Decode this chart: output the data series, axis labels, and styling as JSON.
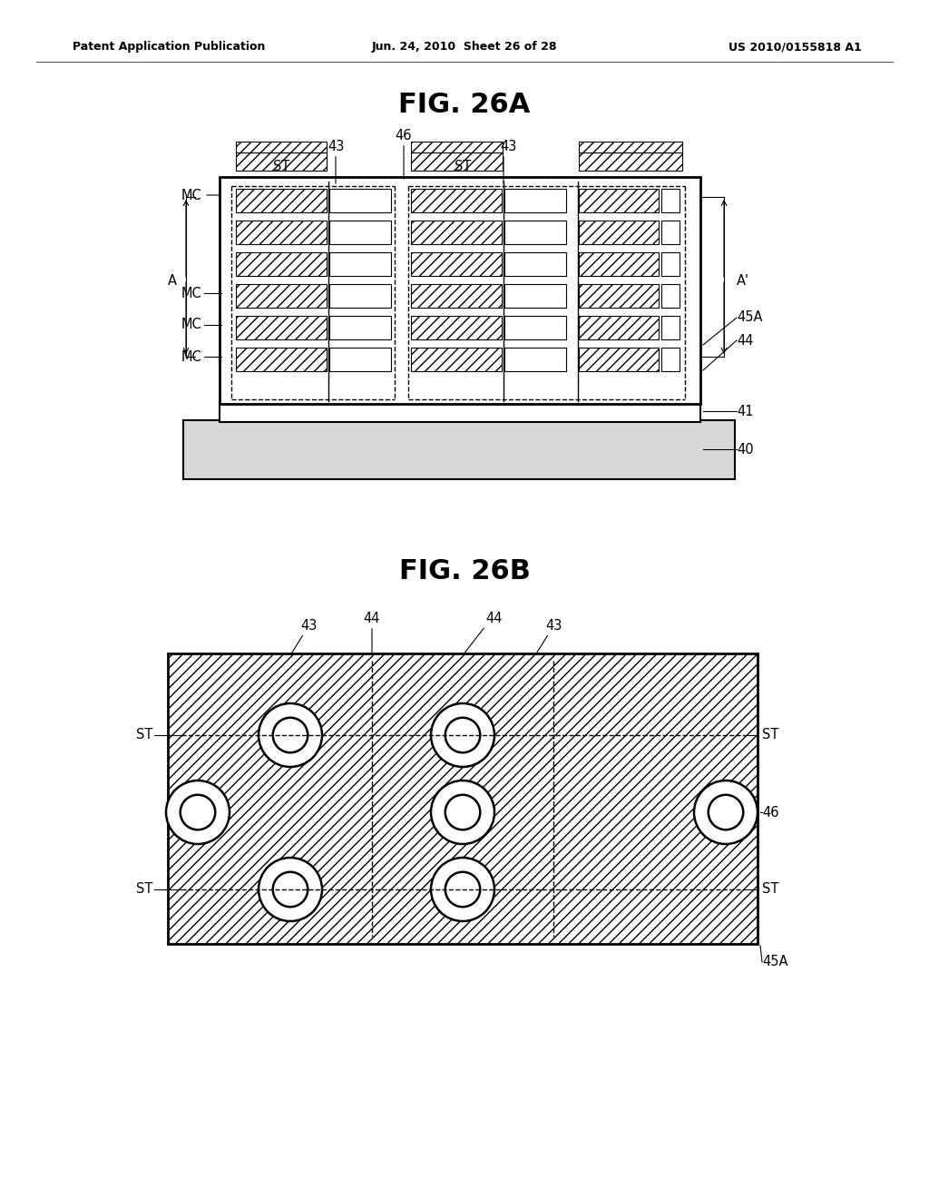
{
  "header_left": "Patent Application Publication",
  "header_mid": "Jun. 24, 2010  Sheet 26 of 28",
  "header_right": "US 2010/0155818 A1",
  "fig_a_title": "FIG. 26A",
  "fig_b_title": "FIG. 26B",
  "bg_color": "#ffffff",
  "line_color": "#000000"
}
